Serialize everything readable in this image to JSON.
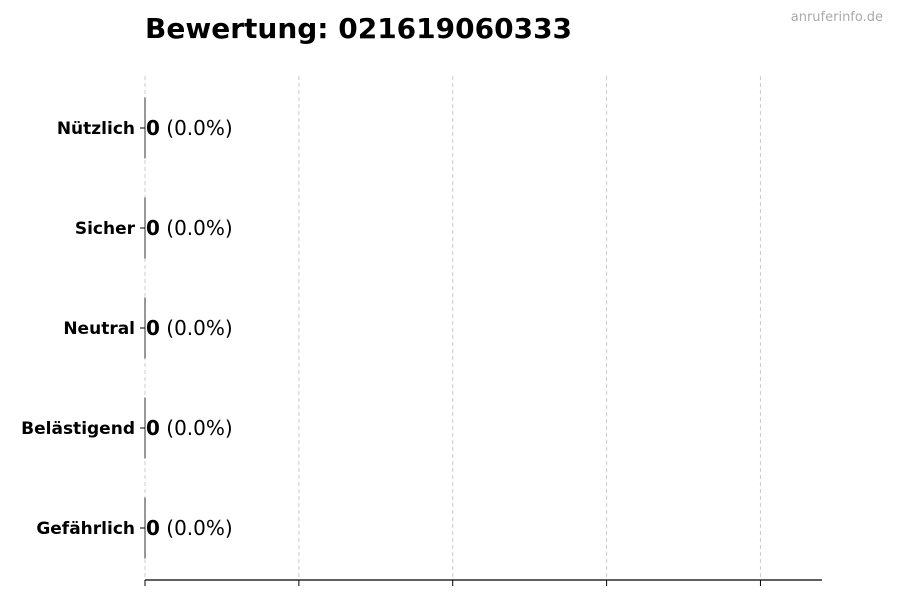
{
  "chart_data": {
    "type": "bar",
    "orientation": "horizontal",
    "title": "Bewertung: 021619060333",
    "watermark": "anruferinfo.de",
    "categories": [
      "Nützlich",
      "Sicher",
      "Neutral",
      "Belästigend",
      "Gefährlich"
    ],
    "values": [
      0,
      0,
      0,
      0,
      0
    ],
    "data_labels": [
      {
        "count": "0",
        "percent": "(0.0%)"
      },
      {
        "count": "0",
        "percent": "(0.0%)"
      },
      {
        "count": "0",
        "percent": "(0.0%)"
      },
      {
        "count": "0",
        "percent": "(0.0%)"
      },
      {
        "count": "0",
        "percent": "(0.0%)"
      }
    ],
    "xlabel": "",
    "ylabel": "",
    "xlim": [
      0,
      4.4
    ],
    "xticks": [
      0,
      1,
      2,
      3,
      4
    ],
    "xtick_labels_shown": false,
    "grid": "x, dashed",
    "colors": {
      "bar_edge": "#333333",
      "grid": "#cccccc",
      "text": "#000000",
      "watermark": "#aaaaaa"
    }
  }
}
